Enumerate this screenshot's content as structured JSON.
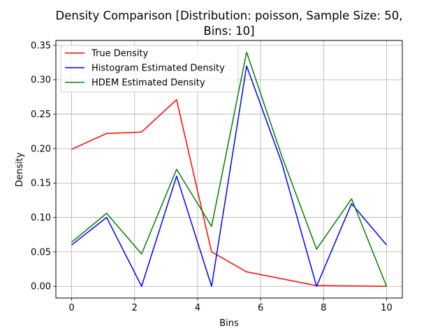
{
  "chart_data": {
    "type": "line",
    "title_line1": "Density Comparison [Distribution: poisson, Sample Size: 50,",
    "title_line2": "Bins: 10]",
    "xlabel": "Bins",
    "ylabel": "Density",
    "xlim": [
      -0.5,
      10.5
    ],
    "ylim": [
      -0.017,
      0.357
    ],
    "xticks": [
      0,
      2,
      4,
      6,
      8,
      10
    ],
    "xtick_labels": [
      "0",
      "2",
      "4",
      "6",
      "8",
      "10"
    ],
    "yticks": [
      0.0,
      0.05,
      0.1,
      0.15,
      0.2,
      0.25,
      0.3,
      0.35
    ],
    "ytick_labels": [
      "0.00",
      "0.05",
      "0.10",
      "0.15",
      "0.20",
      "0.25",
      "0.30",
      "0.35"
    ],
    "grid": true,
    "legend_position": "top-left",
    "x": [
      0,
      1.111,
      2.222,
      3.333,
      4.444,
      5.556,
      6.667,
      7.778,
      8.889,
      10
    ],
    "series": [
      {
        "name": "True Density",
        "color": "#ff0000",
        "values": [
          0.199,
          0.222,
          0.224,
          0.271,
          0.05,
          0.021,
          0.011,
          0.001,
          0.0005,
          0.0
        ]
      },
      {
        "name": "Histogram Estimated Density",
        "color": "#0000ff",
        "values": [
          0.06,
          0.1,
          0.0,
          0.16,
          0.0,
          0.32,
          0.18,
          0.0,
          0.12,
          0.06
        ]
      },
      {
        "name": "HDEM Estimated Density",
        "color": "#008000",
        "values": [
          0.064,
          0.106,
          0.047,
          0.17,
          0.087,
          0.34,
          0.19,
          0.054,
          0.127,
          0.0
        ]
      }
    ]
  }
}
